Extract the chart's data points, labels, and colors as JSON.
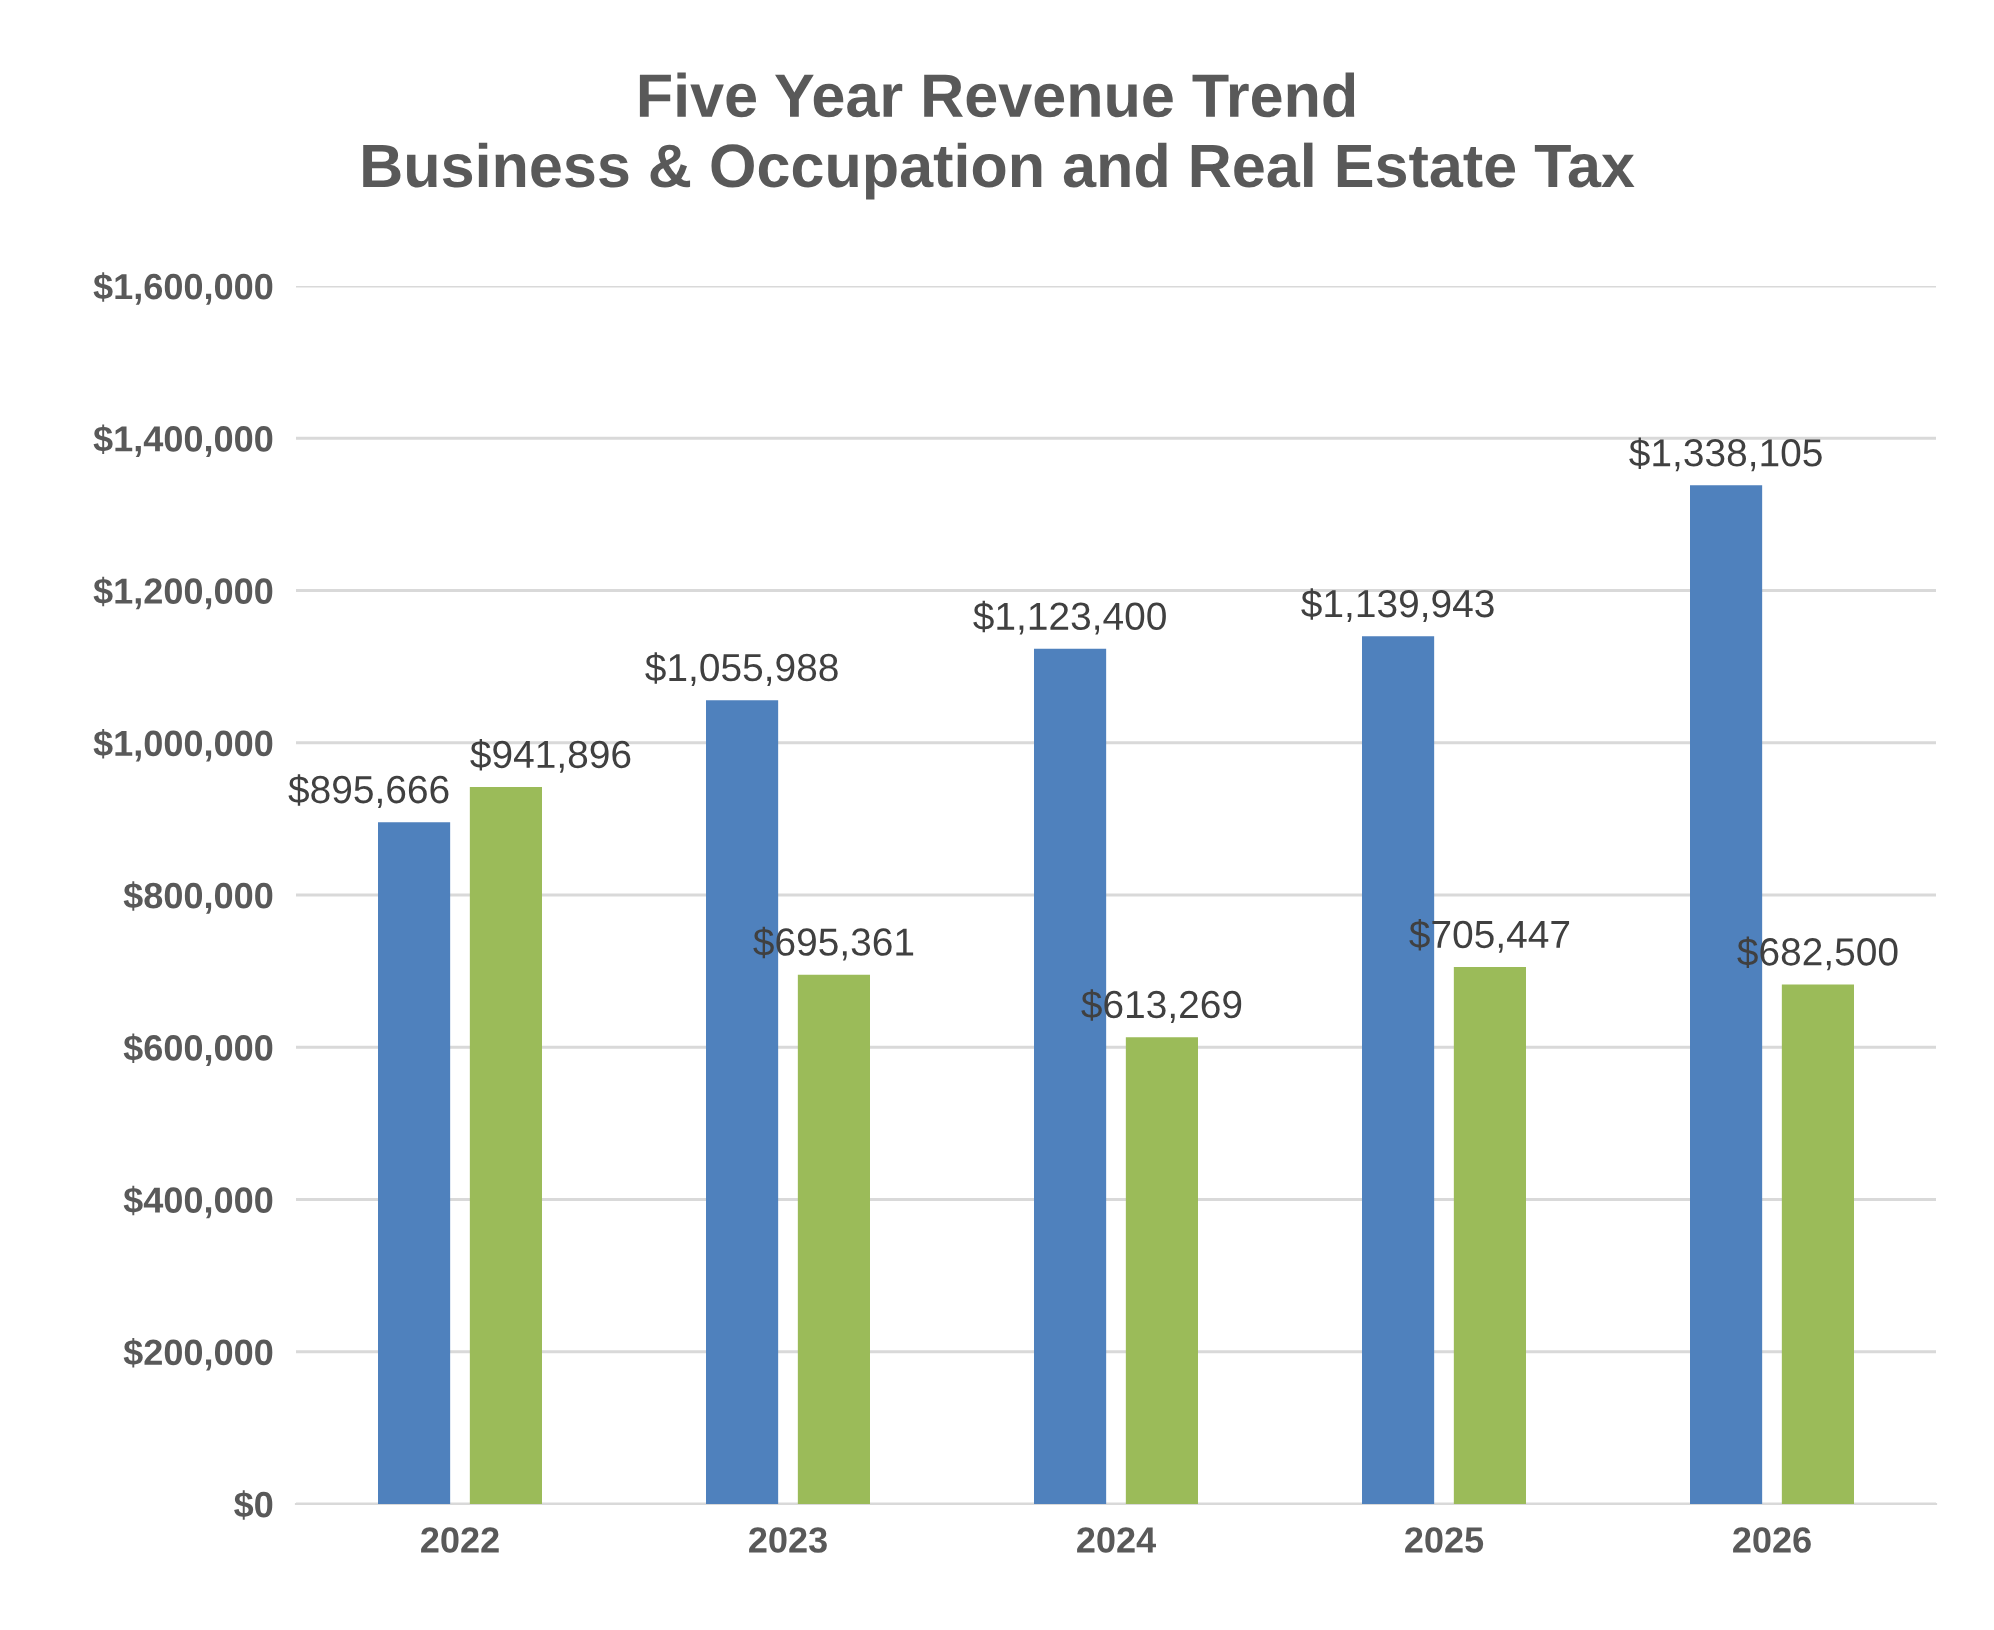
{
  "chart_data": {
    "type": "bar",
    "title": "Five Year Revenue Trend\nBusiness & Occupation and Real Estate Tax",
    "categories": [
      "2022",
      "2023",
      "2024",
      "2025",
      "2026"
    ],
    "series": [
      {
        "color": "#4f81bd",
        "values": [
          895666,
          1055988,
          1123400,
          1139943,
          1338105
        ],
        "value_labels": [
          "$895,666",
          "$1,055,988",
          "$1,123,400",
          "$1,139,943",
          "$1,338,105"
        ]
      },
      {
        "color": "#9bbb59",
        "values": [
          941896,
          695361,
          613269,
          705447,
          682500
        ],
        "value_labels": [
          "$941,896",
          "$695,361",
          "$613,269",
          "$705,447",
          "$682,500"
        ]
      }
    ],
    "ylim": [
      0,
      1600000
    ],
    "yticks": [
      {
        "value": 0,
        "label": "$0"
      },
      {
        "value": 200000,
        "label": "$200,000"
      },
      {
        "value": 400000,
        "label": "$400,000"
      },
      {
        "value": 600000,
        "label": "$600,000"
      },
      {
        "value": 800000,
        "label": "$800,000"
      },
      {
        "value": 1000000,
        "label": "$1,000,000"
      },
      {
        "value": 1200000,
        "label": "$1,200,000"
      },
      {
        "value": 1400000,
        "label": "$1,400,000"
      },
      {
        "value": 1600000,
        "label": "$1,600,000"
      }
    ],
    "grid": "y",
    "legend": false
  }
}
